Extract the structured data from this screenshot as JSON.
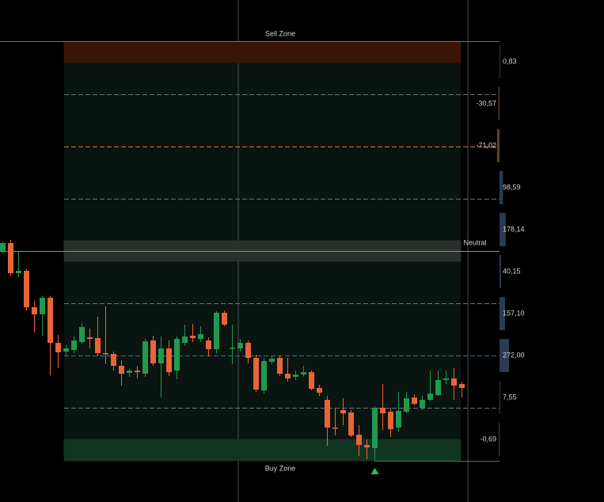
{
  "chart_data": {
    "type": "candlestick",
    "ylim": [
      0,
      530
    ],
    "up_color": "#1f9a4f",
    "down_color": "#e8643a",
    "open": [
      265,
      275,
      237,
      240,
      194,
      185,
      206,
      149,
      138,
      140,
      150,
      156,
      155,
      136,
      135,
      120,
      111,
      114,
      110,
      152,
      123,
      142,
      114,
      149,
      158,
      154,
      152,
      141,
      187,
      142,
      142,
      149,
      130,
      89,
      125,
      130,
      110,
      106,
      109,
      112,
      92,
      77,
      42,
      64,
      61,
      33,
      20,
      16,
      67,
      62,
      42,
      62,
      80,
      67,
      77,
      83,
      102,
      104,
      97
    ],
    "high": [
      277,
      279,
      264,
      242,
      202,
      208,
      208,
      159,
      146,
      157,
      174,
      167,
      182,
      195,
      138,
      127,
      116,
      120,
      154,
      158,
      157,
      152,
      157,
      172,
      173,
      170,
      156,
      189,
      190,
      172,
      154,
      152,
      134,
      130,
      132,
      132,
      130,
      114,
      120,
      114,
      96,
      82,
      67,
      79,
      64,
      45,
      27,
      69,
      97,
      67,
      87,
      87,
      84,
      82,
      114,
      114,
      114,
      117,
      100
    ],
    "low": [
      262,
      234,
      232,
      190,
      162,
      158,
      108,
      117,
      133,
      136,
      147,
      142,
      132,
      122,
      114,
      95,
      106,
      104,
      106,
      120,
      80,
      107,
      103,
      145,
      150,
      150,
      132,
      136,
      170,
      122,
      138,
      123,
      87,
      85,
      122,
      107,
      100,
      102,
      106,
      89,
      82,
      19,
      32,
      45,
      30,
      6,
      2,
      0,
      39,
      30,
      37,
      60,
      70,
      64,
      75,
      82,
      97,
      77,
      80
    ],
    "close": [
      275,
      237,
      240,
      194,
      185,
      206,
      149,
      137,
      142,
      152,
      169,
      154,
      136,
      135,
      120,
      110,
      114,
      112,
      151,
      123,
      142,
      112,
      154,
      157,
      155,
      160,
      141,
      187,
      172,
      143,
      149,
      130,
      90,
      126,
      129,
      110,
      104,
      109,
      112,
      91,
      86,
      42,
      42,
      60,
      32,
      20,
      17,
      67,
      60,
      40,
      63,
      79,
      72,
      77,
      85,
      102,
      104,
      95,
      92
    ],
    "signal": {
      "index": 47,
      "color": "#2fbf5f"
    },
    "zones": [
      {
        "name": "Sell Zone",
        "range": [
          503,
          530
        ],
        "color": "#3a1406",
        "label_color": "#e0432b"
      },
      {
        "name": "Neutral",
        "range": [
          252,
          278
        ],
        "color": "#2a302c",
        "label_color": "#8a8f8c"
      },
      {
        "name": "Buy Zone",
        "range": [
          0,
          27
        ],
        "color": "#123522",
        "label_color": "#3fbf6f"
      }
    ],
    "levels": {
      "values": [
        530,
        463,
        397,
        331,
        265,
        199,
        133,
        67
      ],
      "colors": [
        "#e0432b",
        "#6e7377",
        "#d9783a",
        "#6e7377",
        "#8a8f8c",
        "#6e7377",
        "#3a6fa0",
        "#6e7377"
      ],
      "dashed": [
        false,
        true,
        true,
        true,
        false,
        true,
        true,
        true
      ]
    },
    "profile": {
      "values": [
        0.83,
        -30.57,
        -71.02,
        98.59,
        178.14,
        40.15,
        157.1,
        272.0,
        7.55,
        -0.69
      ],
      "value_labels": [
        "0,83",
        "-30,57",
        "-71,02",
        "98,59",
        "178,14",
        "40,15",
        "157,10",
        "272,00",
        "7,55",
        "-0,69"
      ],
      "positive_color": "#2a3b52",
      "negative_color": "#5c4128"
    }
  }
}
